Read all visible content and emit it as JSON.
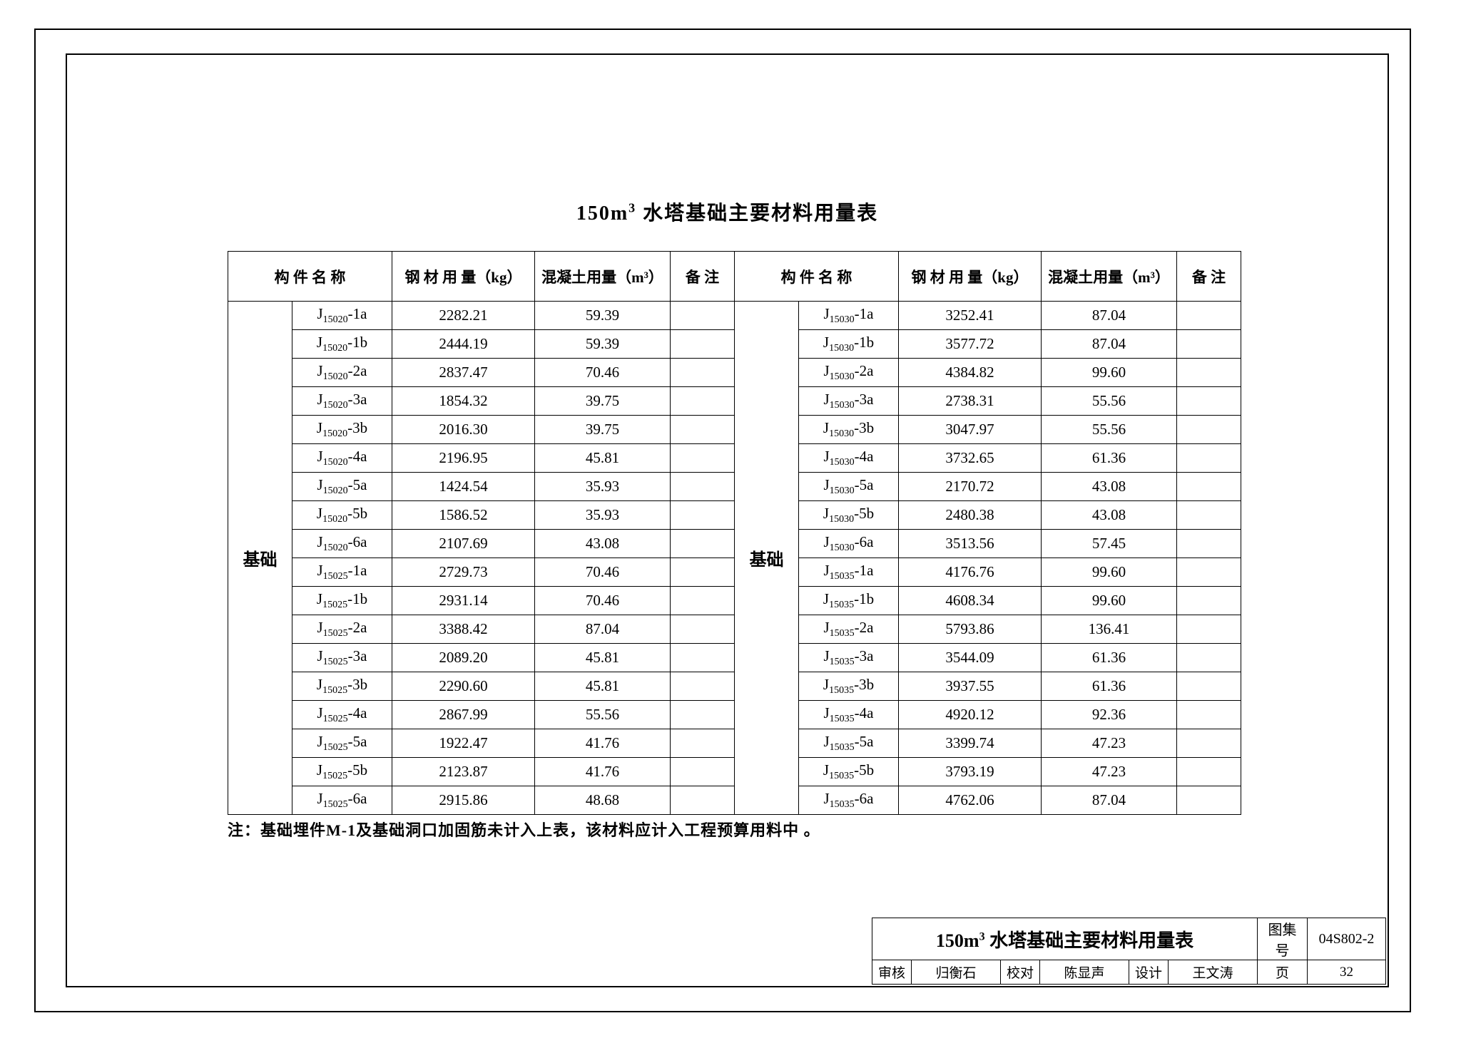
{
  "title": "150m³ 水塔基础主要材料用量表",
  "title_plain": "150m",
  "title_sup": "3",
  "title_rest": " 水塔基础主要材料用量表",
  "headers": {
    "component_name": "构 件 名 称",
    "steel": "钢 材 用 量（kg）",
    "concrete": "混凝土用量（m³）",
    "note": "备 注"
  },
  "group_label": "基础",
  "left_rows": [
    {
      "code_pre": "J",
      "code_sub": "15020",
      "code_post": "-1a",
      "steel": "2282.21",
      "concrete": "59.39"
    },
    {
      "code_pre": "J",
      "code_sub": "15020",
      "code_post": "-1b",
      "steel": "2444.19",
      "concrete": "59.39"
    },
    {
      "code_pre": "J",
      "code_sub": "15020",
      "code_post": "-2a",
      "steel": "2837.47",
      "concrete": "70.46"
    },
    {
      "code_pre": "J",
      "code_sub": "15020",
      "code_post": "-3a",
      "steel": "1854.32",
      "concrete": "39.75"
    },
    {
      "code_pre": "J",
      "code_sub": "15020",
      "code_post": "-3b",
      "steel": "2016.30",
      "concrete": "39.75"
    },
    {
      "code_pre": "J",
      "code_sub": "15020",
      "code_post": "-4a",
      "steel": "2196.95",
      "concrete": "45.81"
    },
    {
      "code_pre": "J",
      "code_sub": "15020",
      "code_post": "-5a",
      "steel": "1424.54",
      "concrete": "35.93"
    },
    {
      "code_pre": "J",
      "code_sub": "15020",
      "code_post": "-5b",
      "steel": "1586.52",
      "concrete": "35.93"
    },
    {
      "code_pre": "J",
      "code_sub": "15020",
      "code_post": "-6a",
      "steel": "2107.69",
      "concrete": "43.08"
    },
    {
      "code_pre": "J",
      "code_sub": "15025",
      "code_post": "-1a",
      "steel": "2729.73",
      "concrete": "70.46"
    },
    {
      "code_pre": "J",
      "code_sub": "15025",
      "code_post": "-1b",
      "steel": "2931.14",
      "concrete": "70.46"
    },
    {
      "code_pre": "J",
      "code_sub": "15025",
      "code_post": "-2a",
      "steel": "3388.42",
      "concrete": "87.04"
    },
    {
      "code_pre": "J",
      "code_sub": "15025",
      "code_post": "-3a",
      "steel": "2089.20",
      "concrete": "45.81"
    },
    {
      "code_pre": "J",
      "code_sub": "15025",
      "code_post": "-3b",
      "steel": "2290.60",
      "concrete": "45.81"
    },
    {
      "code_pre": "J",
      "code_sub": "15025",
      "code_post": "-4a",
      "steel": "2867.99",
      "concrete": "55.56"
    },
    {
      "code_pre": "J",
      "code_sub": "15025",
      "code_post": "-5a",
      "steel": "1922.47",
      "concrete": "41.76"
    },
    {
      "code_pre": "J",
      "code_sub": "15025",
      "code_post": "-5b",
      "steel": "2123.87",
      "concrete": "41.76"
    },
    {
      "code_pre": "J",
      "code_sub": "15025",
      "code_post": "-6a",
      "steel": "2915.86",
      "concrete": "48.68"
    }
  ],
  "right_rows": [
    {
      "code_pre": "J",
      "code_sub": "15030",
      "code_post": "-1a",
      "steel": "3252.41",
      "concrete": "87.04"
    },
    {
      "code_pre": "J",
      "code_sub": "15030",
      "code_post": "-1b",
      "steel": "3577.72",
      "concrete": "87.04"
    },
    {
      "code_pre": "J",
      "code_sub": "15030",
      "code_post": "-2a",
      "steel": "4384.82",
      "concrete": "99.60"
    },
    {
      "code_pre": "J",
      "code_sub": "15030",
      "code_post": "-3a",
      "steel": "2738.31",
      "concrete": "55.56"
    },
    {
      "code_pre": "J",
      "code_sub": "15030",
      "code_post": "-3b",
      "steel": "3047.97",
      "concrete": "55.56"
    },
    {
      "code_pre": "J",
      "code_sub": "15030",
      "code_post": "-4a",
      "steel": "3732.65",
      "concrete": "61.36"
    },
    {
      "code_pre": "J",
      "code_sub": "15030",
      "code_post": "-5a",
      "steel": "2170.72",
      "concrete": "43.08"
    },
    {
      "code_pre": "J",
      "code_sub": "15030",
      "code_post": "-5b",
      "steel": "2480.38",
      "concrete": "43.08"
    },
    {
      "code_pre": "J",
      "code_sub": "15030",
      "code_post": "-6a",
      "steel": "3513.56",
      "concrete": "57.45"
    },
    {
      "code_pre": "J",
      "code_sub": "15035",
      "code_post": "-1a",
      "steel": "4176.76",
      "concrete": "99.60"
    },
    {
      "code_pre": "J",
      "code_sub": "15035",
      "code_post": "-1b",
      "steel": "4608.34",
      "concrete": "99.60"
    },
    {
      "code_pre": "J",
      "code_sub": "15035",
      "code_post": "-2a",
      "steel": "5793.86",
      "concrete": "136.41"
    },
    {
      "code_pre": "J",
      "code_sub": "15035",
      "code_post": "-3a",
      "steel": "3544.09",
      "concrete": "61.36"
    },
    {
      "code_pre": "J",
      "code_sub": "15035",
      "code_post": "-3b",
      "steel": "3937.55",
      "concrete": "61.36"
    },
    {
      "code_pre": "J",
      "code_sub": "15035",
      "code_post": "-4a",
      "steel": "4920.12",
      "concrete": "92.36"
    },
    {
      "code_pre": "J",
      "code_sub": "15035",
      "code_post": "-5a",
      "steel": "3399.74",
      "concrete": "47.23"
    },
    {
      "code_pre": "J",
      "code_sub": "15035",
      "code_post": "-5b",
      "steel": "3793.19",
      "concrete": "47.23"
    },
    {
      "code_pre": "J",
      "code_sub": "15035",
      "code_post": "-6a",
      "steel": "4762.06",
      "concrete": "87.04"
    }
  ],
  "note": "注：基础埋件M-1及基础洞口加固筋未计入上表，该材料应计入工程预算用料中 。",
  "title_block": {
    "main": "150m³ 水塔基础主要材料用量表",
    "main_pre": "150m",
    "main_sup": "3",
    "main_post": " 水塔基础主要材料用量表",
    "tuji_label": "图集号",
    "tuji_value": "04S802-2",
    "shenhe_label": "审核",
    "shenhe_value": "归衡石",
    "jiaodui_label": "校对",
    "jiaodui_value": "陈显声",
    "sheji_label": "设计",
    "sheji_value": "王文涛",
    "page_label": "页",
    "page_value": "32"
  }
}
